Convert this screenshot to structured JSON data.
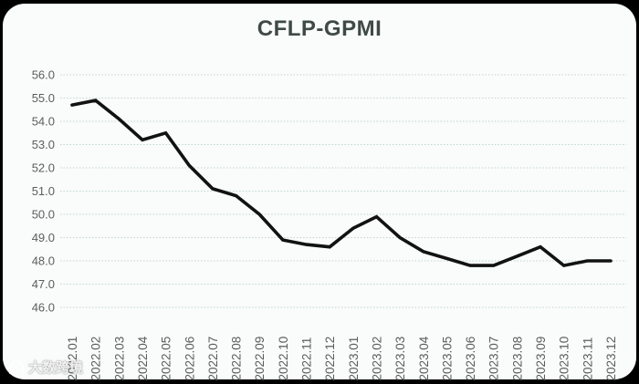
{
  "title": "CFLP-GPMI",
  "watermark": {
    "icon": "mascot-logo-icon",
    "text": "大数跨境"
  },
  "colors": {
    "frame_bg": "#000000",
    "card_bg": "#fafbfb",
    "grid": "#bfd6d3",
    "line": "#121212",
    "title": "#3f4a47",
    "tick": "#595f5e"
  },
  "chart_data": {
    "type": "line",
    "title": "CFLP-GPMI",
    "xlabel": "",
    "ylabel": "",
    "categories": [
      "2022.01",
      "2022.02",
      "2022.03",
      "2022.04",
      "2022.05",
      "2022.06",
      "2022.07",
      "2022.08",
      "2022.09",
      "2022.10",
      "2022.11",
      "2022.12",
      "2023.01",
      "2023.02",
      "2023.03",
      "2023.04",
      "2023.05",
      "2023.06",
      "2023.07",
      "2023.08",
      "2023.09",
      "2023.10",
      "2023.11",
      "2023.12"
    ],
    "values": [
      54.7,
      54.9,
      54.1,
      53.2,
      53.5,
      52.1,
      51.1,
      50.8,
      50.0,
      48.9,
      48.7,
      48.6,
      49.4,
      49.9,
      49.0,
      48.4,
      48.1,
      47.8,
      47.8,
      48.2,
      48.6,
      47.8,
      48.0,
      48.0
    ],
    "ylim": [
      46.0,
      56.0
    ],
    "ytick_step": 1.0,
    "ytick_labels": [
      "56.0",
      "55.0",
      "54.0",
      "53.0",
      "52.0",
      "51.0",
      "50.0",
      "49.0",
      "48.0",
      "47.0",
      "46.0"
    ],
    "grid": "horizontal-dotted",
    "legend": "none",
    "x_label_rotation_deg": -90
  }
}
